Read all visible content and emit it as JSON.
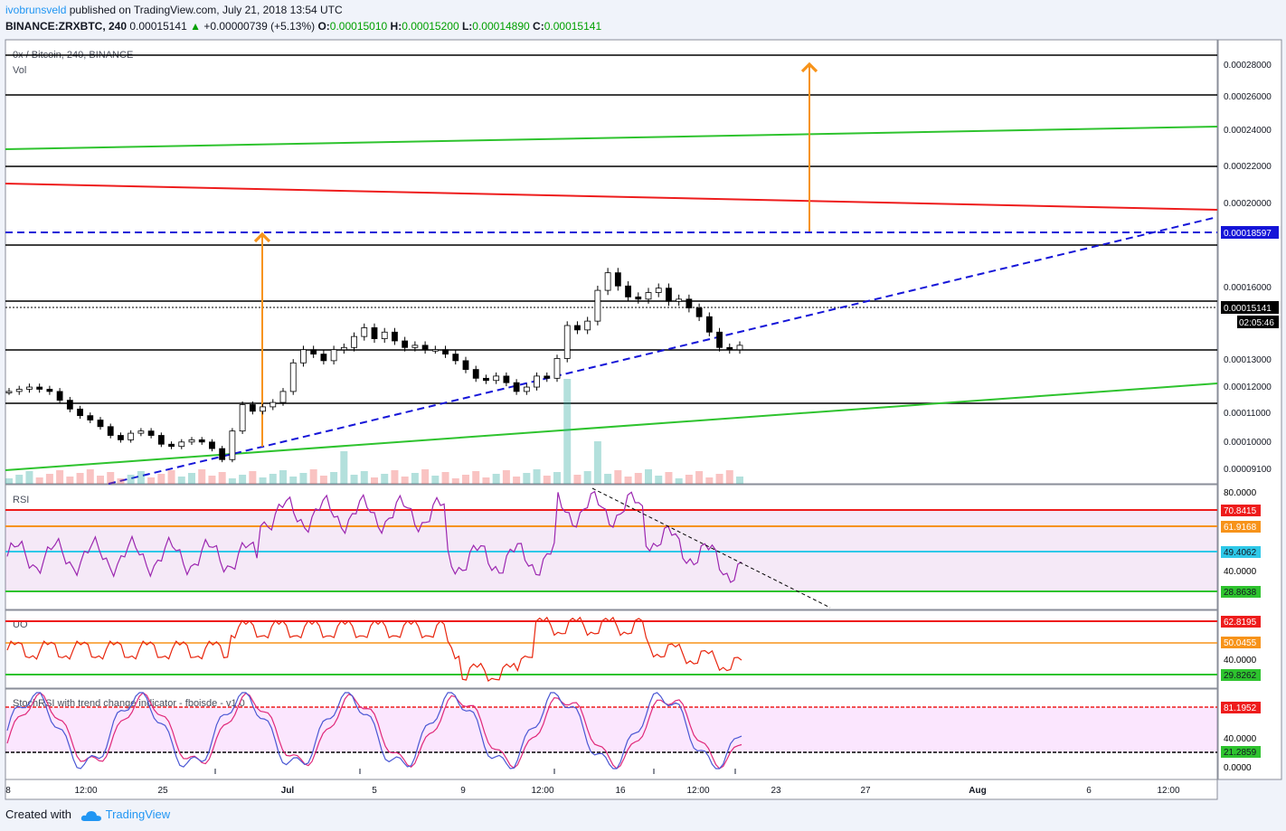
{
  "header": {
    "author": "ivobrunsveld",
    "published": "published on TradingView.com, July 21, 2018 13:54 UTC",
    "symbol": "BINANCE:ZRXBTC, 240",
    "last": "0.00015141",
    "change": "+0.00000739 (+5.13%)",
    "o_label": "O:",
    "o": "0.00015010",
    "h_label": "H:",
    "h": "0.00015200",
    "l_label": "L:",
    "l": "0.00014890",
    "c_label": "C:",
    "c": "0.00015141"
  },
  "panes": {
    "main_title": "0x / Bitcoin, 240, BINANCE",
    "vol_label": "Vol",
    "rsi_label": "RSI",
    "uo_label": "UO",
    "stoch_label": "StochRSI with trend change indicator - fboisde - v1.0"
  },
  "footer": {
    "created": "Created with",
    "brand": "TradingView"
  },
  "colors": {
    "bg": "#ffffff",
    "up": "#26a69a",
    "down": "#000000",
    "support": "#000000",
    "green": "#2ec32e",
    "red": "#ee1c1c",
    "blue": "#1515d8",
    "orange": "#f7931a",
    "rsi": "#9c27b0",
    "uo": "#e8260e",
    "stoch_k": "#4a57d4",
    "stoch_d": "#e0287a"
  },
  "chart_data": [
    {
      "type": "line",
      "name": "price",
      "y_ticks": [
        "0.00028000",
        "0.00026000",
        "0.00024000",
        "0.00022000",
        "0.00020000",
        "0.00016000",
        "0.00013000",
        "0.00012000",
        "0.00011000",
        "0.00010000",
        "0.00009100"
      ],
      "x_ticks": [
        "8",
        "12:00",
        "25",
        "Jul",
        "5",
        "9",
        "12:00",
        "16",
        "12:00",
        "23",
        "27",
        "Aug",
        "6",
        "12:00"
      ],
      "ylim": [
        8.8e-05,
        0.00029
      ],
      "last_price": "0.00015141",
      "countdown": "02:05:46",
      "resistance_label": "0.00018597",
      "horizontal_levels": [
        0.000285,
        0.00026,
        0.00022,
        0.000179,
        0.000153,
        0.000133,
        0.000113
      ],
      "close": [
        0.00013,
        0.000131,
        0.000132,
        0.000131,
        0.00013,
        0.000126,
        0.000122,
        0.000119,
        0.000117,
        0.000114,
        0.00011,
        0.000108,
        0.000111,
        0.000112,
        0.00011,
        0.000106,
        0.000105,
        0.000107,
        0.000108,
        0.000107,
        0.000104,
        9.9e-05,
        0.000112,
        0.000124,
        0.000121,
        0.000123,
        0.000125,
        0.00013,
        0.000143,
        0.000149,
        0.000147,
        0.000144,
        0.000149,
        0.00015,
        0.000155,
        0.000159,
        0.000154,
        0.000157,
        0.000153,
        0.00015,
        0.000151,
        0.000149,
        0.000149,
        0.000147,
        0.000144,
        0.00014,
        0.000136,
        0.000135,
        0.000137,
        0.000134,
        0.00013,
        0.000132,
        0.000137,
        0.000136,
        0.000145,
        0.00016,
        0.000158,
        0.000162,
        0.000176,
        0.000184,
        0.000178,
        0.000173,
        0.000172,
        0.000175,
        0.000177,
        0.000171,
        0.000172,
        0.000168,
        0.000164,
        0.000157,
        0.00015,
        0.000149,
        0.000151
      ]
    },
    {
      "type": "line",
      "name": "RSI",
      "y_ticks": [
        "80.0000",
        "40.0000"
      ],
      "levels": [
        "70.8415",
        "61.9168",
        "49.4062",
        "28.8638"
      ],
      "ylim": [
        15,
        85
      ]
    },
    {
      "type": "line",
      "name": "UO",
      "y_ticks": [
        "40.0000"
      ],
      "levels": [
        "62.8195",
        "50.0455",
        "29.8262"
      ],
      "ylim": [
        15,
        75
      ]
    },
    {
      "type": "line",
      "name": "StochRSI",
      "y_ticks": [
        "40.0000",
        "0.0000"
      ],
      "levels": [
        "81.1952",
        "21.2859"
      ],
      "ylim": [
        -10,
        100
      ]
    }
  ]
}
